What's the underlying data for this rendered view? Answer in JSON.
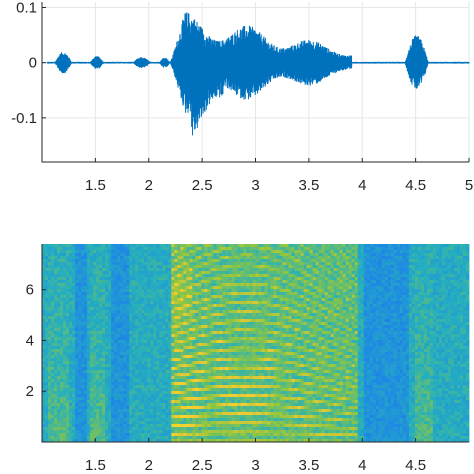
{
  "chart_data": [
    {
      "type": "line",
      "title": "",
      "xlabel": "",
      "ylabel": "",
      "xlim": [
        1.0,
        5.0
      ],
      "ylim": [
        -0.18,
        0.11
      ],
      "xticks": [
        1.5,
        2,
        2.5,
        3,
        3.5,
        4,
        4.5,
        5
      ],
      "xtick_labels": [
        "1.5",
        "2",
        "2.5",
        "3",
        "3.5",
        "4",
        "4.5",
        "5"
      ],
      "yticks": [
        0.1,
        0,
        -0.1
      ],
      "ytick_labels": [
        "0.1",
        "0",
        "-0.1"
      ],
      "grid": true,
      "series_color": "#0072BD",
      "segments": [
        {
          "t_start": 1.12,
          "t_end": 1.28,
          "amplitude": 0.02
        },
        {
          "t_start": 1.45,
          "t_end": 1.58,
          "amplitude": 0.012
        },
        {
          "t_start": 1.85,
          "t_end": 2.02,
          "amplitude": 0.01
        },
        {
          "t_start": 2.1,
          "t_end": 2.2,
          "amplitude": 0.01
        },
        {
          "t_start": 2.2,
          "t_end": 3.9,
          "amplitude": 0.1
        },
        {
          "t_start": 4.4,
          "t_end": 4.62,
          "amplitude": 0.05
        }
      ]
    },
    {
      "type": "heatmap",
      "title": "",
      "xlabel": "",
      "ylabel": "",
      "xlim": [
        1.0,
        5.0
      ],
      "ylim": [
        0.0,
        7.8
      ],
      "xticks": [
        1.5,
        2,
        2.5,
        3,
        3.5,
        4,
        4.5
      ],
      "xtick_labels": [
        "1.5",
        "2",
        "2.5",
        "3",
        "3.5",
        "4",
        "4.5"
      ],
      "yticks": [
        6,
        4,
        2
      ],
      "ytick_labels": [
        "6",
        "4",
        "2"
      ],
      "colormap": [
        "#3e26a8",
        "#1e88e5",
        "#26b0bd",
        "#8fc63f",
        "#f2c931",
        "#f9d923"
      ],
      "voiced_start": 2.2,
      "voiced_end": 3.95,
      "harmonic_count": 22
    }
  ]
}
